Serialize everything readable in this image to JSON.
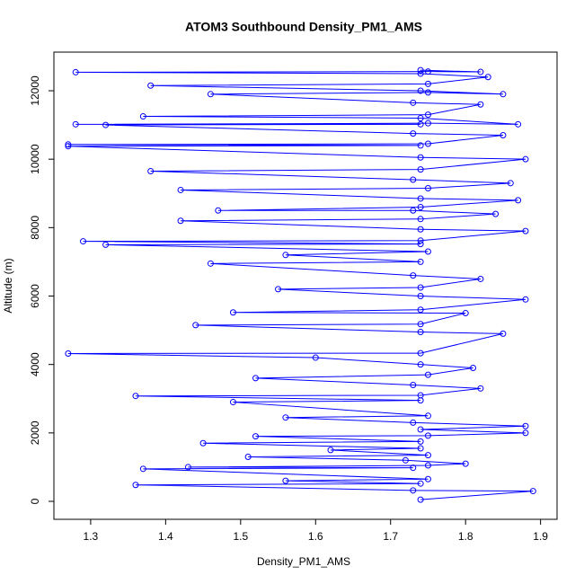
{
  "chart_data": {
    "type": "line",
    "markers": true,
    "title": "ATOM3 Southbound Density_PM1_AMS",
    "x_label": "Density_PM1_AMS",
    "y_label": "Altitude (m)",
    "color": "#0000ff",
    "x": [
      1.74,
      1.89,
      1.73,
      1.36,
      1.74,
      1.56,
      1.75,
      1.37,
      1.73,
      1.43,
      1.75,
      1.8,
      1.72,
      1.51,
      1.75,
      1.62,
      1.74,
      1.45,
      1.74,
      1.52,
      1.75,
      1.88,
      1.74,
      1.88,
      1.73,
      1.56,
      1.75,
      1.49,
      1.74,
      1.36,
      1.74,
      1.82,
      1.73,
      1.52,
      1.75,
      1.81,
      1.74,
      1.6,
      1.27,
      1.74,
      1.85,
      1.74,
      1.44,
      1.74,
      1.8,
      1.49,
      1.74,
      1.88,
      1.74,
      1.55,
      1.74,
      1.82,
      1.73,
      1.46,
      1.74,
      1.56,
      1.75,
      1.32,
      1.74,
      1.29,
      1.74,
      1.88,
      1.74,
      1.42,
      1.74,
      1.84,
      1.73,
      1.47,
      1.74,
      1.87,
      1.74,
      1.42,
      1.75,
      1.86,
      1.73,
      1.38,
      1.74,
      1.88,
      1.74,
      1.27,
      1.74,
      1.27,
      1.75,
      1.85,
      1.73,
      1.32,
      1.74,
      1.28,
      1.75,
      1.87,
      1.74,
      1.37,
      1.75,
      1.82,
      1.73,
      1.46,
      1.75,
      1.85,
      1.74,
      1.38,
      1.75,
      1.83,
      1.74,
      1.28,
      1.75,
      1.82,
      1.74
    ],
    "values": [
      50,
      300,
      320,
      480,
      520,
      600,
      650,
      950,
      980,
      1000,
      1050,
      1100,
      1200,
      1300,
      1350,
      1500,
      1550,
      1700,
      1750,
      1900,
      1920,
      2000,
      2100,
      2200,
      2300,
      2450,
      2500,
      2900,
      2950,
      3080,
      3100,
      3300,
      3400,
      3600,
      3700,
      3900,
      4000,
      4200,
      4320,
      4330,
      4900,
      4950,
      5150,
      5180,
      5500,
      5520,
      5600,
      5900,
      6000,
      6200,
      6250,
      6500,
      6600,
      6950,
      7000,
      7200,
      7300,
      7500,
      7520,
      7600,
      7620,
      7900,
      7950,
      8200,
      8250,
      8400,
      8500,
      8500,
      8600,
      8800,
      8850,
      9100,
      9150,
      9300,
      9400,
      9650,
      9700,
      10000,
      10050,
      10380,
      10400,
      10430,
      10450,
      10700,
      10750,
      11000,
      11020,
      11020,
      11050,
      11020,
      11200,
      11250,
      11300,
      11600,
      11650,
      11900,
      11950,
      11900,
      12000,
      12150,
      12200,
      12400,
      12500,
      12540,
      12560,
      12550,
      12600
    ],
    "xlim": [
      1.251,
      1.922
    ],
    "xticks": [
      1.3,
      1.4,
      1.5,
      1.6,
      1.7,
      1.8,
      1.9
    ],
    "ylim": [
      -525,
      13129
    ],
    "yticks": [
      0,
      2000,
      4000,
      6000,
      8000,
      10000,
      12000
    ]
  }
}
